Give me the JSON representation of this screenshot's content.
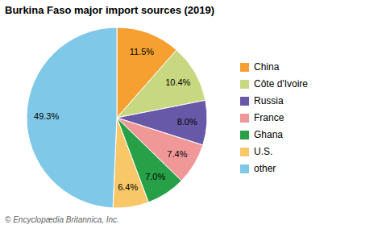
{
  "chart_data": {
    "type": "pie",
    "title": "Burkina Faso major import sources (2019)",
    "categories": [
      "China",
      "Côte d'Ivoire",
      "Russia",
      "France",
      "Ghana",
      "U.S.",
      "other"
    ],
    "values": [
      11.5,
      10.4,
      8.0,
      7.4,
      7.0,
      6.4,
      49.3
    ],
    "value_labels": [
      "11.5%",
      "10.4%",
      "8.0%",
      "7.4%",
      "7.0%",
      "6.4%",
      "49.3%"
    ],
    "colors": [
      "#f5a030",
      "#c8d880",
      "#6858a8",
      "#f09898",
      "#28a048",
      "#f8c868",
      "#80c8e8"
    ],
    "data_labels": true,
    "legend": "right",
    "annotations": [
      "© Encyclopædia Britannica, Inc."
    ]
  }
}
